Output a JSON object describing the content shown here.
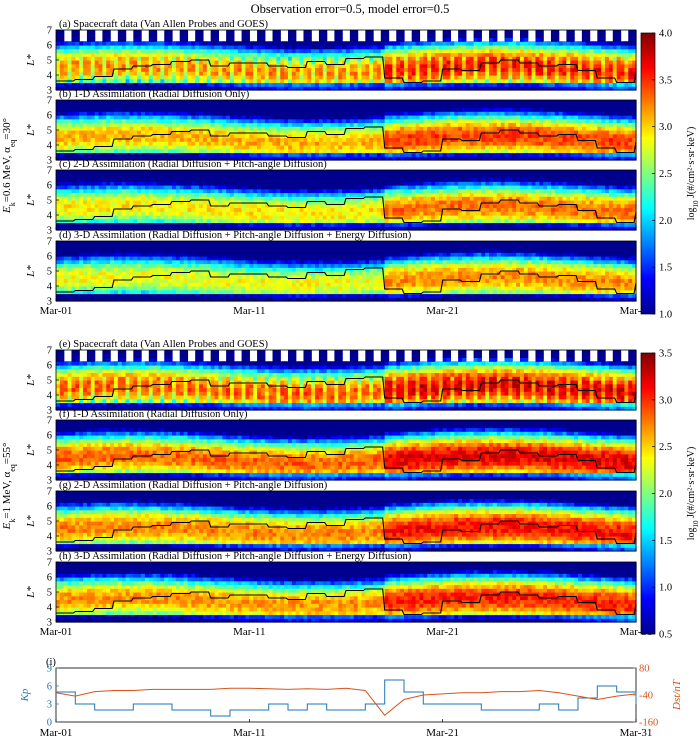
{
  "figure": {
    "title": "Observation error=0.5, model error=0.5"
  },
  "groups": [
    {
      "side_label_main": "E",
      "side_label_sub": "k",
      "side_label_eq": "=0.6 MeV, α",
      "side_label_sub2": "eq",
      "side_label_end": "=30°",
      "colorbar": {
        "label": "log10 J (#/cm²·s·sr·keV)",
        "label_prefix": "log",
        "label_sub": "10",
        "label_rest": " J(#/cm²·s·sr·keV)",
        "ticks": [
          "1.0",
          "1.5",
          "2.0",
          "2.5",
          "3.0",
          "3.5",
          "4.0"
        ],
        "range": [
          1.0,
          4.0
        ]
      },
      "panels": [
        {
          "label": "(a) Spacecraft data (Van Allen Probes and GOES)",
          "kind": "data",
          "level": 0.75
        },
        {
          "label": "(b) 1-D Assimilation (Radial Diffusion Only)",
          "kind": "model",
          "level": 0.7
        },
        {
          "label": "(c) 2-D Assimilation (Radial Diffusion + Pitch-angle Diffusion)",
          "kind": "model",
          "level": 0.65
        },
        {
          "label": "(d) 3-D Assimilation (Radial Diffusion + Pitch-angle Diffusion + Energy Diffusion)",
          "kind": "model",
          "level": 0.62
        }
      ]
    },
    {
      "side_label_main": "E",
      "side_label_sub": "k",
      "side_label_eq": "=1 MeV, α",
      "side_label_sub2": "eq",
      "side_label_end": "=55°",
      "colorbar": {
        "label": "log10 J (#/cm²·s·sr·keV)",
        "label_prefix": "log",
        "label_sub": "10",
        "label_rest": " J(#/cm²·s·sr·keV)",
        "ticks": [
          "0.5",
          "1.0",
          "1.5",
          "2.0",
          "2.5",
          "3.0",
          "3.5"
        ],
        "range": [
          0.5,
          3.5
        ]
      },
      "panels": [
        {
          "label": "(e) Spacecraft data (Van Allen Probes and GOES)",
          "kind": "data",
          "level": 0.8
        },
        {
          "label": "(f) 1-D Assimilation (Radial Diffusion Only)",
          "kind": "model",
          "level": 0.78
        },
        {
          "label": "(g) 2-D Assimilation (Radial Diffusion + Pitch-angle Diffusion)",
          "kind": "model",
          "level": 0.75
        },
        {
          "label": "(h) 3-D Assimilation (Radial Diffusion + Pitch-angle Diffusion + Energy Diffusion)",
          "kind": "model",
          "level": 0.73
        }
      ]
    }
  ],
  "panel_axis": {
    "ylabel": "L*",
    "yticks": [
      "3",
      "4",
      "5",
      "6",
      "7"
    ],
    "yrange": [
      3,
      7
    ]
  },
  "x_axis": {
    "ticks": [
      "Mar-01",
      "Mar-11",
      "Mar-21",
      "Mar-31"
    ],
    "tick_days": [
      1,
      11,
      21,
      31
    ],
    "range": [
      1,
      31
    ]
  },
  "index_panel": {
    "label": "(i)",
    "left_label": "Kp",
    "left_ticks": [
      "0",
      "3",
      "6",
      "9"
    ],
    "left_range": [
      0,
      9
    ],
    "right_label": "Dst/nT",
    "right_ticks": [
      "-160",
      "-40",
      "80"
    ],
    "right_range": [
      -160,
      80
    ],
    "kp_color": "#1f77b4",
    "dst_color": "#d95319"
  },
  "colors": {
    "plasmapause_line": "#000000",
    "kp_line": "#1f77b4",
    "dst_line": "#d95319"
  },
  "chart_data": {
    "type": "heatmap",
    "title": "Observation error=0.5, model error=0.5",
    "xlabel": "",
    "ylabel": "L*",
    "x_range": [
      "Mar-01",
      "Mar-31"
    ],
    "y_range": [
      3,
      7
    ],
    "panels": [
      "(a) Spacecraft data (Van Allen Probes and GOES)",
      "(b) 1-D Assimilation (Radial Diffusion Only)",
      "(c) 2-D Assimilation (Radial Diffusion + Pitch-angle Diffusion)",
      "(d) 3-D Assimilation (Radial Diffusion + Pitch-angle Diffusion + Energy Diffusion)",
      "(e) Spacecraft data (Van Allen Probes and GOES)",
      "(f) 1-D Assimilation (Radial Diffusion Only)",
      "(g) 2-D Assimilation (Radial Diffusion + Pitch-angle Diffusion)",
      "(h) 3-D Assimilation (Radial Diffusion + Pitch-angle Diffusion + Energy Diffusion)"
    ],
    "colorbar_ranges": [
      [
        1.0,
        4.0
      ],
      [
        0.5,
        3.5
      ]
    ],
    "plasmapause_Lstar": {
      "day": [
        1,
        2,
        3,
        4,
        5,
        6,
        7,
        8,
        9,
        10,
        11,
        12,
        13,
        14,
        15,
        16,
        17,
        18,
        19,
        20,
        21,
        22,
        23,
        24,
        25,
        26,
        27,
        28,
        29,
        30,
        31
      ],
      "value": [
        3.6,
        3.7,
        3.9,
        4.4,
        4.6,
        4.7,
        4.9,
        5.0,
        4.6,
        4.8,
        4.8,
        4.6,
        4.5,
        4.9,
        4.7,
        5.1,
        5.2,
        3.8,
        3.5,
        3.6,
        4.4,
        4.3,
        4.8,
        5.0,
        4.8,
        4.6,
        4.7,
        4.3,
        3.8,
        3.5,
        4.2
      ]
    },
    "index_series": [
      {
        "name": "Kp",
        "axis": "left",
        "day": [
          1,
          2,
          3,
          4,
          5,
          6,
          7,
          8,
          9,
          10,
          11,
          12,
          13,
          14,
          15,
          16,
          17,
          18,
          19,
          20,
          21,
          22,
          23,
          24,
          25,
          26,
          27,
          28,
          29,
          30,
          31
        ],
        "values": [
          5,
          3,
          2,
          2,
          3,
          3,
          2,
          2,
          1,
          2,
          2,
          3,
          2,
          3,
          2,
          2,
          3,
          7,
          5,
          3,
          3,
          3,
          2,
          2,
          2,
          3,
          2,
          4,
          6,
          5,
          3
        ]
      },
      {
        "name": "Dst",
        "axis": "right",
        "day": [
          1,
          2,
          3,
          4,
          5,
          6,
          7,
          8,
          9,
          10,
          11,
          12,
          13,
          14,
          15,
          16,
          17,
          18,
          19,
          20,
          21,
          22,
          23,
          24,
          25,
          26,
          27,
          28,
          29,
          30,
          31
        ],
        "values": [
          -30,
          -45,
          -25,
          -20,
          -20,
          -15,
          -15,
          -15,
          -15,
          -10,
          -10,
          -12,
          -15,
          -12,
          -15,
          -10,
          -20,
          -130,
          -60,
          -40,
          -35,
          -30,
          -30,
          -25,
          -25,
          -20,
          -30,
          -45,
          -60,
          -45,
          -35
        ]
      }
    ]
  }
}
